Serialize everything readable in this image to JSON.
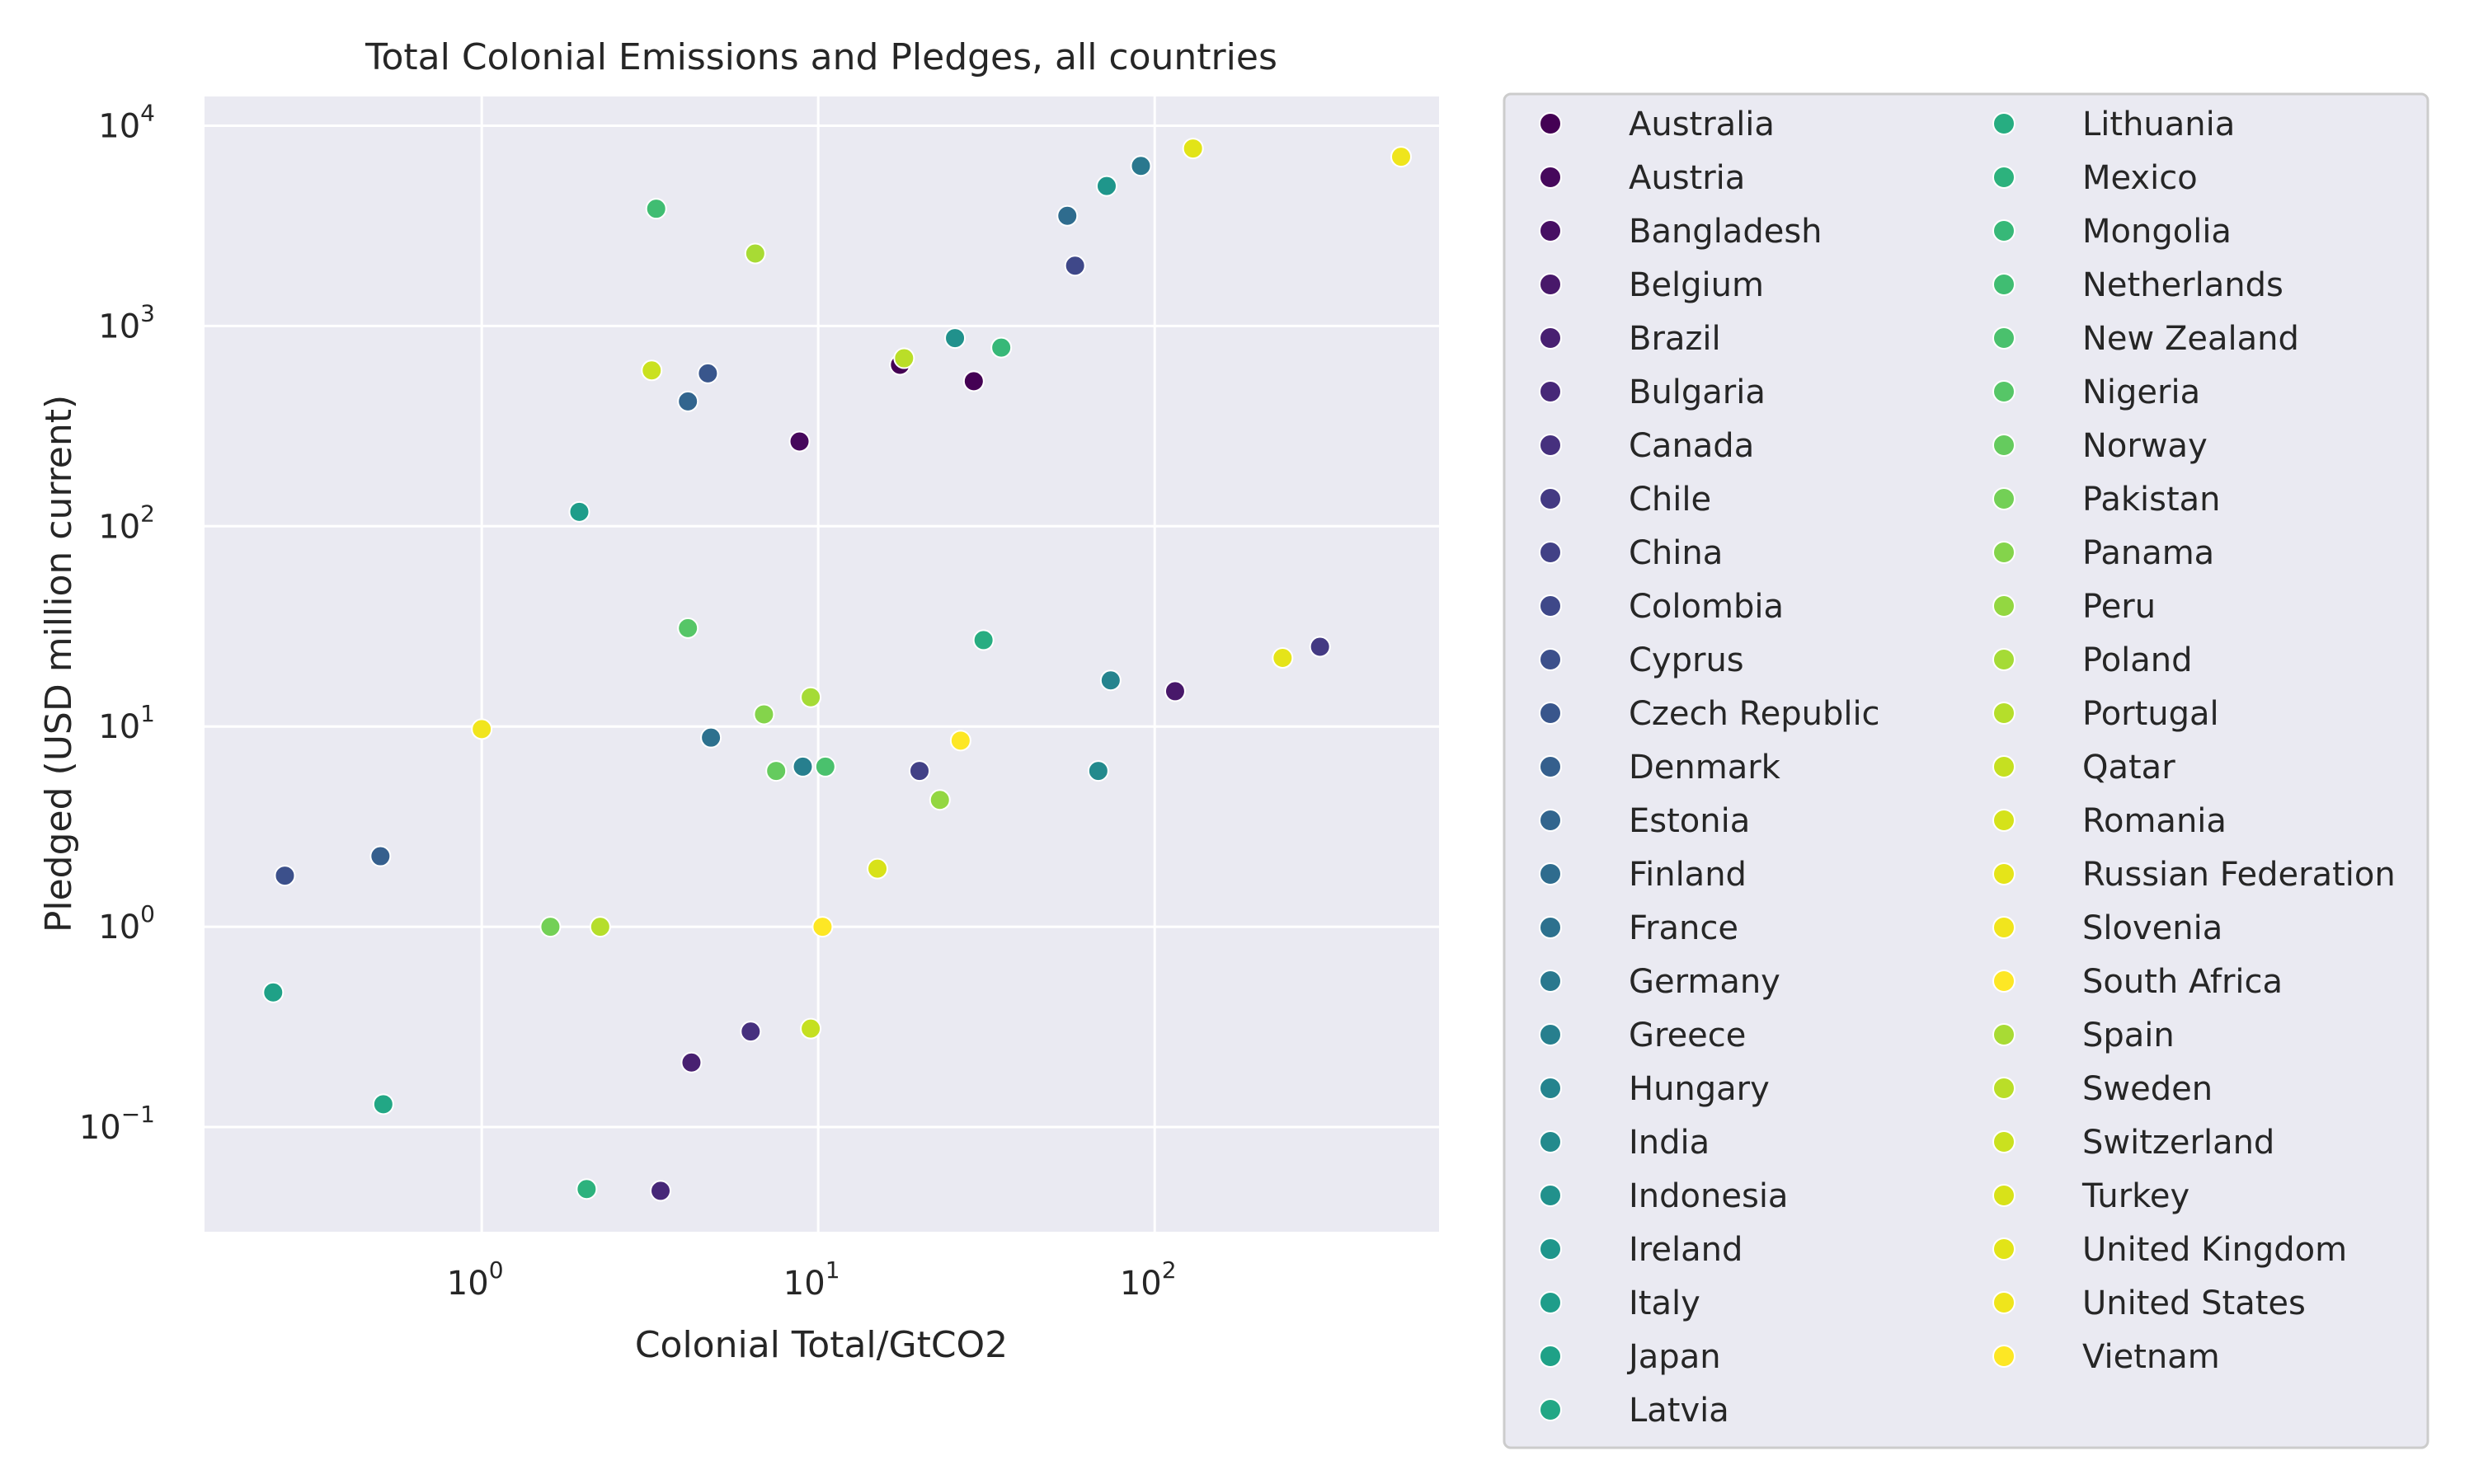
{
  "chart_data": {
    "type": "scatter",
    "title": "Total Colonial Emissions and Pledges, all countries",
    "xlabel": "Colonial Total/GtCO2",
    "ylabel": "Pledged (USD million current)",
    "x_scale": "log",
    "y_scale": "log",
    "xlim": [
      0.15,
      700
    ],
    "ylim": [
      0.03,
      14000
    ],
    "x_ticks": [
      {
        "value": 1,
        "base": "10",
        "exp": "0"
      },
      {
        "value": 10,
        "base": "10",
        "exp": "1"
      },
      {
        "value": 100,
        "base": "10",
        "exp": "2"
      }
    ],
    "y_ticks": [
      {
        "value": 0.1,
        "base": "10",
        "exp": "−1"
      },
      {
        "value": 1,
        "base": "10",
        "exp": "0"
      },
      {
        "value": 10,
        "base": "10",
        "exp": "1"
      },
      {
        "value": 100,
        "base": "10",
        "exp": "2"
      },
      {
        "value": 1000,
        "base": "10",
        "exp": "3"
      },
      {
        "value": 10000,
        "base": "10",
        "exp": "4"
      }
    ],
    "grid": true,
    "legend_position": "outside right, two columns",
    "colors": {
      "background": "#eaeaf2",
      "grid": "#ffffff",
      "marker_edge": "#ffffff"
    },
    "series": [
      {
        "name": "Australia",
        "color": "#440154",
        "x": [
          17.5,
          29.0
        ],
        "y": [
          640,
          530
        ]
      },
      {
        "name": "Austria",
        "color": "#46085c",
        "x": [
          8.8
        ],
        "y": [
          265
        ]
      },
      {
        "name": "Bangladesh",
        "color": "#471063",
        "x": [],
        "y": []
      },
      {
        "name": "Belgium",
        "color": "#48186a",
        "x": [
          115
        ],
        "y": [
          15
        ]
      },
      {
        "name": "Brazil",
        "color": "#482071",
        "x": [
          4.2
        ],
        "y": [
          0.21
        ]
      },
      {
        "name": "Bulgaria",
        "color": "#472878",
        "x": [
          3.4
        ],
        "y": [
          0.048
        ]
      },
      {
        "name": "Canada",
        "color": "#46307e",
        "x": [
          6.3
        ],
        "y": [
          0.3
        ]
      },
      {
        "name": "Chile",
        "color": "#443a83",
        "x": [
          310
        ],
        "y": [
          25
        ]
      },
      {
        "name": "China",
        "color": "#424186",
        "x": [
          20
        ],
        "y": [
          6.0
        ]
      },
      {
        "name": "Colombia",
        "color": "#3f4889",
        "x": [
          58
        ],
        "y": [
          2000
        ]
      },
      {
        "name": "Cyprus",
        "color": "#3c508b",
        "x": [
          0.26
        ],
        "y": [
          1.8
        ]
      },
      {
        "name": "Czech Republic",
        "color": "#39568c",
        "x": [
          4.7
        ],
        "y": [
          580
        ]
      },
      {
        "name": "Denmark",
        "color": "#355f8d",
        "x": [
          0.5
        ],
        "y": [
          2.25
        ]
      },
      {
        "name": "Estonia",
        "color": "#32658e",
        "x": [
          4.1
        ],
        "y": [
          420
        ]
      },
      {
        "name": "Finland",
        "color": "#2f6c8e",
        "x": [
          55
        ],
        "y": [
          3550
        ]
      },
      {
        "name": "France",
        "color": "#2d718e",
        "x": [
          4.8
        ],
        "y": [
          8.8
        ]
      },
      {
        "name": "Germany",
        "color": "#2a788e",
        "x": [
          91
        ],
        "y": [
          6300
        ]
      },
      {
        "name": "Greece",
        "color": "#277f8e",
        "x": [
          9.0
        ],
        "y": [
          6.3
        ]
      },
      {
        "name": "Hungary",
        "color": "#25848e",
        "x": [
          74
        ],
        "y": [
          17
        ]
      },
      {
        "name": "India",
        "color": "#238a8d",
        "x": [
          68
        ],
        "y": [
          6.0
        ]
      },
      {
        "name": "Indonesia",
        "color": "#21918c",
        "x": [
          25.5
        ],
        "y": [
          870
        ]
      },
      {
        "name": "Ireland",
        "color": "#1f968b",
        "x": [
          72
        ],
        "y": [
          5000
        ]
      },
      {
        "name": "Italy",
        "color": "#1f9d8a",
        "x": [
          1.95
        ],
        "y": [
          118
        ]
      },
      {
        "name": "Japan",
        "color": "#1fa187",
        "x": [
          0.24
        ],
        "y": [
          0.47
        ]
      },
      {
        "name": "Latvia",
        "color": "#22a785",
        "x": [
          0.51
        ],
        "y": [
          0.13
        ]
      },
      {
        "name": "Lithuania",
        "color": "#27ad81",
        "x": [
          31
        ],
        "y": [
          27
        ]
      },
      {
        "name": "Mexico",
        "color": "#2db27d",
        "x": [
          2.05
        ],
        "y": [
          0.049
        ]
      },
      {
        "name": "Mongolia",
        "color": "#37b878",
        "x": [
          35
        ],
        "y": [
          780
        ]
      },
      {
        "name": "Netherlands",
        "color": "#40bd72",
        "x": [
          3.3
        ],
        "y": [
          3850
        ]
      },
      {
        "name": "New Zealand",
        "color": "#4ac16d",
        "x": [
          10.5
        ],
        "y": [
          6.3
        ]
      },
      {
        "name": "Nigeria",
        "color": "#56c667",
        "x": [
          4.1
        ],
        "y": [
          31
        ]
      },
      {
        "name": "Norway",
        "color": "#65cb5e",
        "x": [
          7.5
        ],
        "y": [
          6.0
        ]
      },
      {
        "name": "Pakistan",
        "color": "#73d056",
        "x": [
          1.6
        ],
        "y": [
          1.0
        ]
      },
      {
        "name": "Panama",
        "color": "#84d44b",
        "x": [
          6.9
        ],
        "y": [
          11.5
        ]
      },
      {
        "name": "Peru",
        "color": "#93d741",
        "x": [
          23
        ],
        "y": [
          4.3
        ]
      },
      {
        "name": "Poland",
        "color": "#a5db36",
        "x": [
          9.5
        ],
        "y": [
          14
        ]
      },
      {
        "name": "Portugal",
        "color": "#b5de2b",
        "x": [
          2.25
        ],
        "y": [
          1.0
        ]
      },
      {
        "name": "Qatar",
        "color": "#c5e021",
        "x": [
          9.5
        ],
        "y": [
          0.31
        ]
      },
      {
        "name": "Romania",
        "color": "#d5e21a",
        "x": [],
        "y": []
      },
      {
        "name": "Russian Federation",
        "color": "#e5e419",
        "x": [
          240
        ],
        "y": [
          22
        ]
      },
      {
        "name": "Slovenia",
        "color": "#f1e51d",
        "x": [
          1.0
        ],
        "y": [
          9.7
        ]
      },
      {
        "name": "South Africa",
        "color": "#fde725",
        "x": [
          26.5
        ],
        "y": [
          8.5
        ]
      },
      {
        "name": "Spain",
        "color": "#a8db34",
        "x": [
          6.5
        ],
        "y": [
          2300
        ]
      },
      {
        "name": "Sweden",
        "color": "#bade28",
        "x": [
          18
        ],
        "y": [
          690
        ]
      },
      {
        "name": "Switzerland",
        "color": "#cae11f",
        "x": [
          3.2
        ],
        "y": [
          600
        ]
      },
      {
        "name": "Turkey",
        "color": "#d8e219",
        "x": [
          15
        ],
        "y": [
          1.95
        ]
      },
      {
        "name": "United Kingdom",
        "color": "#e2e418",
        "x": [
          130
        ],
        "y": [
          7700
        ]
      },
      {
        "name": "United States",
        "color": "#efe51c",
        "x": [
          540
        ],
        "y": [
          7000
        ]
      },
      {
        "name": "Vietnam",
        "color": "#fde725",
        "x": [
          10.3
        ],
        "y": [
          1.0
        ]
      }
    ]
  }
}
